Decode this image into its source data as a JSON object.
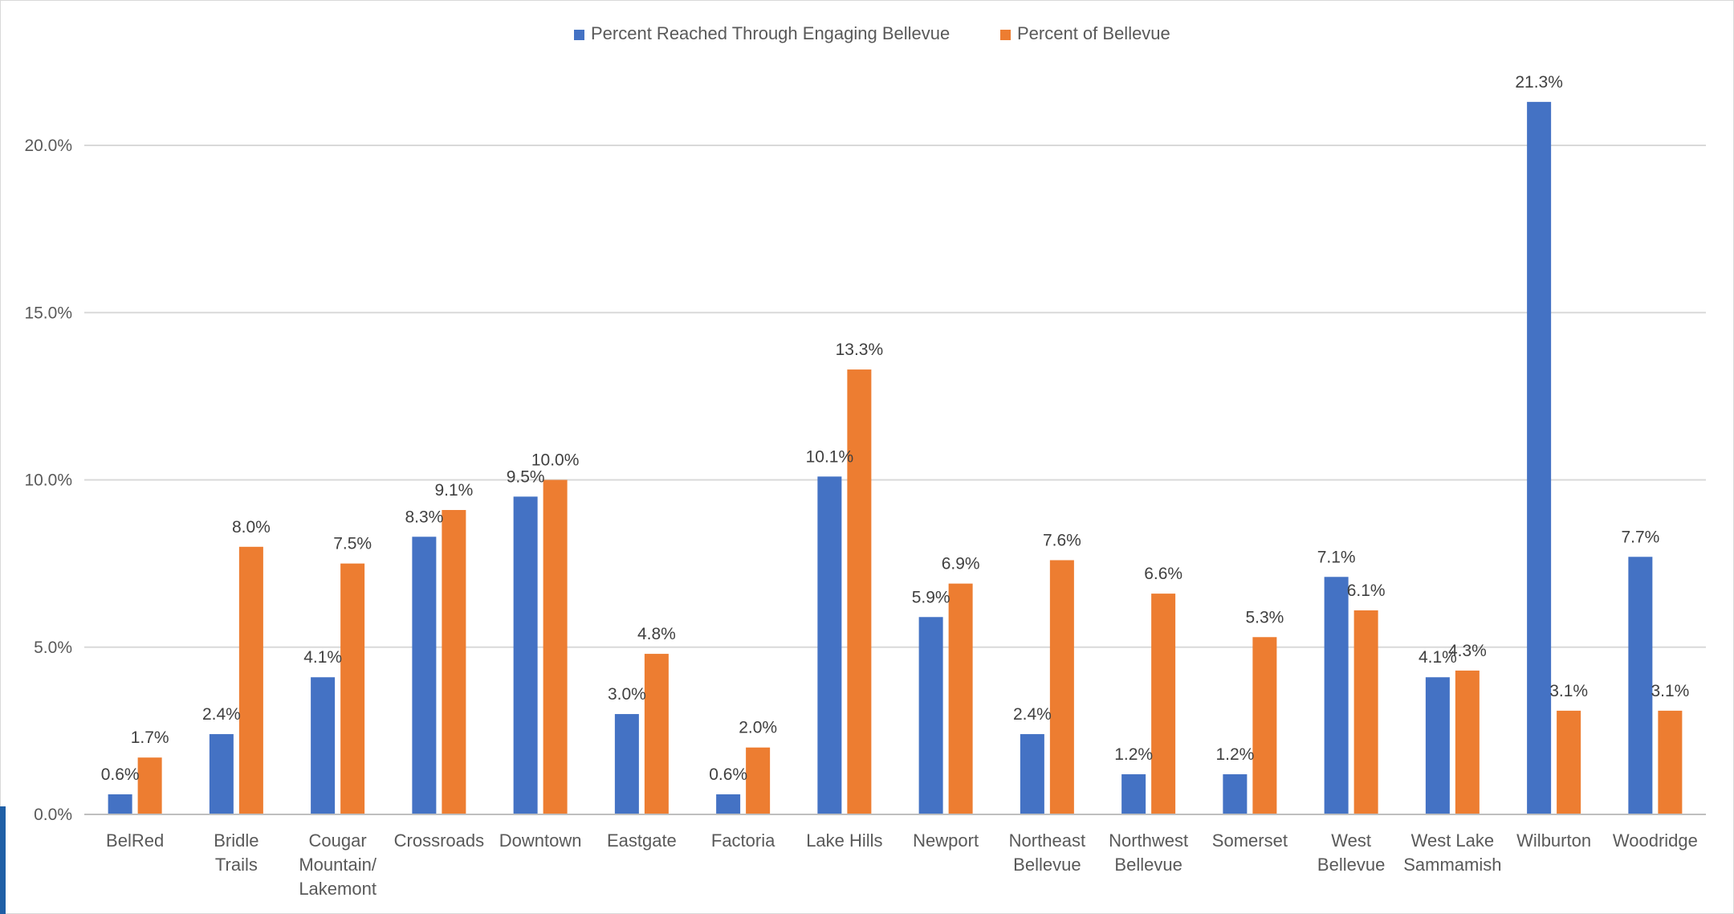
{
  "chart_data": {
    "type": "bar",
    "categories": [
      [
        "BelRed"
      ],
      [
        "Bridle",
        "Trails"
      ],
      [
        "Cougar",
        "Mountain/",
        "Lakemont"
      ],
      [
        "Crossroads"
      ],
      [
        "Downtown"
      ],
      [
        "Eastgate"
      ],
      [
        "Factoria"
      ],
      [
        "Lake Hills"
      ],
      [
        "Newport"
      ],
      [
        "Northeast",
        "Bellevue"
      ],
      [
        "Northwest",
        "Bellevue"
      ],
      [
        "Somerset"
      ],
      [
        "West",
        "Bellevue"
      ],
      [
        "West Lake",
        "Sammamish"
      ],
      [
        "Wilburton"
      ],
      [
        "Woodridge"
      ]
    ],
    "series": [
      {
        "name": "Percent Reached Through Engaging Bellevue",
        "color": "#4472c4",
        "values": [
          0.6,
          2.4,
          4.1,
          8.3,
          9.5,
          3.0,
          0.6,
          10.1,
          5.9,
          2.4,
          1.2,
          1.2,
          7.1,
          4.1,
          21.3,
          7.7
        ],
        "labels": [
          "0.6%",
          "2.4%",
          "4.1%",
          "8.3%",
          "9.5%",
          "3.0%",
          "0.6%",
          "10.1%",
          "5.9%",
          "2.4%",
          "1.2%",
          "1.2%",
          "7.1%",
          "4.1%",
          "21.3%",
          "7.7%"
        ]
      },
      {
        "name": "Percent of Bellevue",
        "color": "#ed7d31",
        "values": [
          1.7,
          8.0,
          7.5,
          9.1,
          10.0,
          4.8,
          2.0,
          13.3,
          6.9,
          7.6,
          6.6,
          5.3,
          6.1,
          4.3,
          3.1,
          3.1
        ],
        "labels": [
          "1.7%",
          "8.0%",
          "7.5%",
          "9.1%",
          "10.0%",
          "4.8%",
          "2.0%",
          "13.3%",
          "6.9%",
          "7.6%",
          "6.6%",
          "5.3%",
          "6.1%",
          "4.3%",
          "3.1%",
          "3.1%"
        ]
      }
    ],
    "y_ticks": [
      {
        "value": 0,
        "label": "0.0%"
      },
      {
        "value": 5,
        "label": "5.0%"
      },
      {
        "value": 10,
        "label": "10.0%"
      },
      {
        "value": 15,
        "label": "15.0%"
      },
      {
        "value": 20,
        "label": "20.0%"
      }
    ],
    "ylim": [
      0,
      24
    ],
    "grid": true,
    "legend_position": "top-center",
    "gridline_color": "#d9d9d9",
    "axis_color": "#bfbfbf"
  }
}
